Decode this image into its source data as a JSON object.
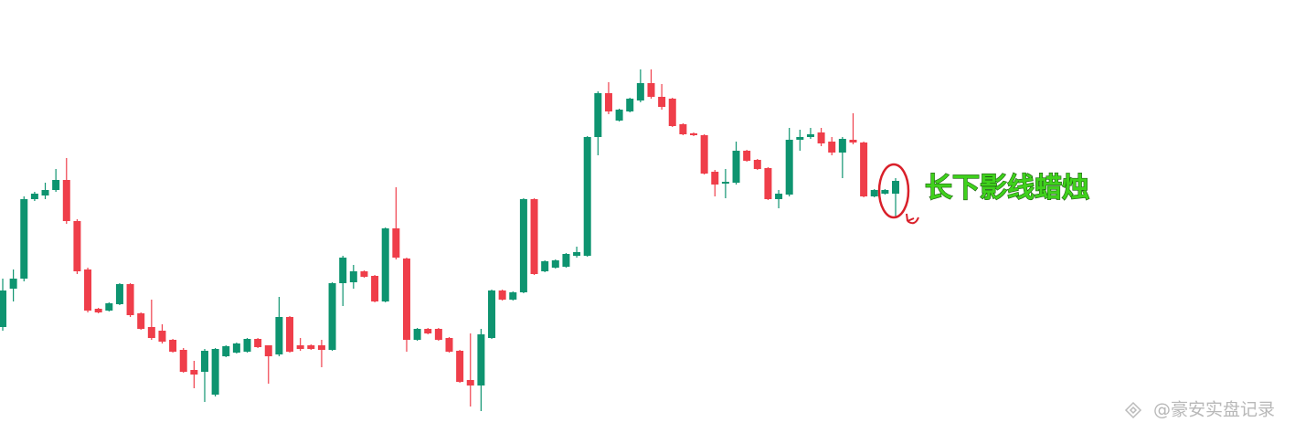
{
  "chart_data": {
    "type": "candlestick",
    "annotation": "长下影线蜡烛",
    "watermark": "@豪安实盘记录",
    "up_color": "#0e9470",
    "down_color": "#ef3e4a",
    "highlight_color": "#d9202a",
    "ylim": [
      0,
      474
    ],
    "open": [
      116,
      158,
      169,
      256,
      260,
      266,
      277,
      232,
      179,
      136,
      134,
      141,
      163,
      131,
      116,
      112,
      102,
      91,
      69,
      67,
      42,
      84,
      88,
      89,
      103,
      96,
      86,
      127,
      96,
      96,
      96,
      91,
      164,
      165,
      177,
      172,
      144,
      224,
      191,
      102,
      114,
      114,
      104,
      90,
      58,
      52,
      104,
      156,
      146,
      154,
      256,
      177,
      181,
      182,
      194,
      194,
      324,
      372,
      342,
      352,
      364,
      383,
      368,
      366,
      338,
      328,
      326,
      286,
      273,
      274,
      309,
      299,
      290,
      256,
      261,
      321,
      324,
      329,
      319,
      307,
      321,
      318,
      259,
      262,
      262
    ],
    "high": [
      169,
      179,
      259,
      264,
      274,
      289,
      301,
      234,
      181,
      137,
      143,
      164,
      164,
      132,
      146,
      119,
      103,
      93,
      79,
      92,
      93,
      96,
      99,
      104,
      104,
      96,
      149,
      128,
      104,
      97,
      102,
      165,
      194,
      184,
      178,
      173,
      225,
      269,
      192,
      115,
      115,
      115,
      105,
      91,
      109,
      114,
      157,
      157,
      155,
      257,
      257,
      189,
      190,
      197,
      204,
      325,
      374,
      384,
      355,
      367,
      398,
      398,
      382,
      367,
      339,
      329,
      327,
      288,
      289,
      319,
      310,
      300,
      291,
      266,
      334,
      332,
      334,
      334,
      324,
      324,
      350,
      319,
      267,
      267,
      279
    ],
    "low": [
      112,
      144,
      166,
      254,
      256,
      264,
      229,
      174,
      132,
      131,
      133,
      140,
      127,
      113,
      102,
      98,
      88,
      66,
      49,
      34,
      40,
      83,
      87,
      88,
      93,
      54,
      84,
      88,
      90,
      91,
      72,
      90,
      139,
      158,
      170,
      143,
      143,
      190,
      89,
      101,
      108,
      101,
      88,
      55,
      29,
      24,
      103,
      145,
      145,
      153,
      173,
      176,
      180,
      181,
      192,
      193,
      304,
      349,
      341,
      351,
      362,
      366,
      354,
      335,
      326,
      325,
      283,
      259,
      257,
      272,
      297,
      288,
      255,
      246,
      259,
      309,
      322,
      314,
      304,
      279,
      316,
      258,
      258,
      261,
      236
    ],
    "close": [
      156,
      169,
      256,
      262,
      266,
      277,
      232,
      177,
      134,
      132,
      142,
      163,
      129,
      114,
      104,
      100,
      89,
      67,
      64,
      90,
      92,
      95,
      98,
      103,
      94,
      84,
      127,
      89,
      92,
      92,
      91,
      164,
      192,
      177,
      171,
      144,
      224,
      192,
      102,
      114,
      109,
      102,
      89,
      56,
      52,
      108,
      156,
      146,
      154,
      256,
      174,
      188,
      189,
      196,
      198,
      324,
      372,
      352,
      354,
      366,
      383,
      368,
      357,
      336,
      327,
      326,
      284,
      272,
      275,
      309,
      298,
      289,
      256,
      262,
      321,
      324,
      327,
      317,
      307,
      322,
      318,
      259,
      266,
      266,
      276
    ]
  }
}
